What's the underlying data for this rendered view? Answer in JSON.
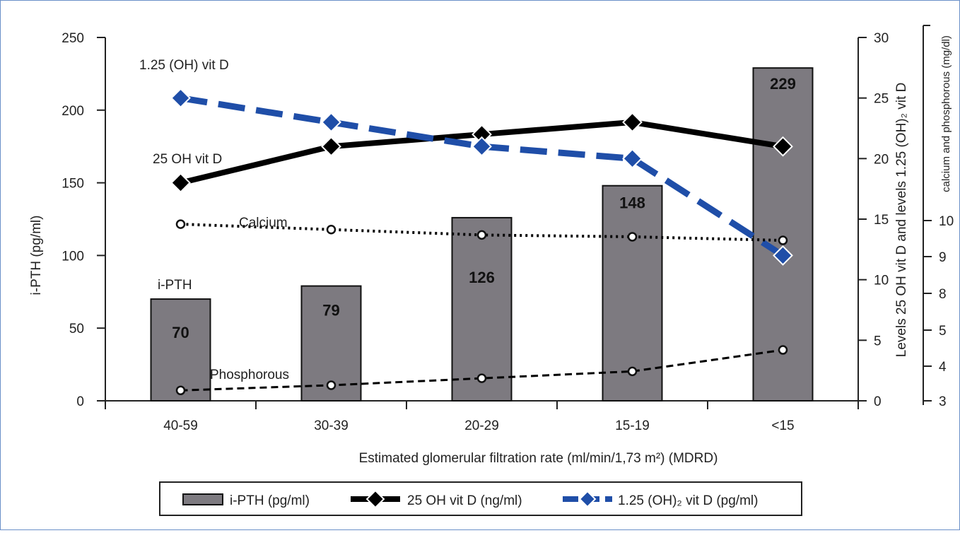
{
  "chart_data": {
    "type": "bar+line",
    "xlabel": "Estimated glomerular filtration rate (ml/min/1,73 m²) (MDRD)",
    "categories": [
      "40-59",
      "30-39",
      "20-29",
      "15-19",
      "<15"
    ],
    "y_left": {
      "label": "i-PTH (pg/ml)",
      "ylim": [
        0,
        250
      ],
      "ticks": [
        "0",
        "50",
        "100",
        "150",
        "200",
        "250"
      ]
    },
    "y_right1": {
      "label": "Levels 25 OH vit D and levels 1.25 (OH)₂ vit D",
      "ylim": [
        0,
        30
      ],
      "ticks": [
        "0",
        "5",
        "10",
        "15",
        "20",
        "25",
        "30"
      ]
    },
    "y_right2": {
      "label": "calcium and phosphorous (mg/dl)",
      "ticks": [
        "3",
        "4",
        "5",
        "8",
        "9",
        "10"
      ]
    },
    "bars": {
      "name": "i-PTH",
      "values": [
        70,
        79,
        126,
        148,
        229
      ],
      "value_labels": [
        "70",
        "79",
        "126",
        "148",
        "229"
      ],
      "color": "#7d7a80"
    },
    "lines": [
      {
        "name": "25 OH  vit D",
        "axis": "right1",
        "values": [
          18,
          21,
          22,
          23,
          21
        ],
        "color": "#000000",
        "style": "solid-diamond"
      },
      {
        "name": "1.25 (OH)₂  vit D",
        "axis": "right1",
        "values": [
          25,
          23,
          21,
          20,
          12
        ],
        "color": "#1f4ea8",
        "style": "dashed-diamond"
      },
      {
        "name": "Calcium",
        "axis": "right2",
        "values": [
          9.9,
          9.75,
          9.6,
          9.55,
          9.45
        ],
        "color": "#000000",
        "style": "dotted-circle"
      },
      {
        "name": "Phosphorous",
        "axis": "right2",
        "values": [
          3.3,
          3.45,
          3.65,
          3.85,
          4.45
        ],
        "color": "#000000",
        "style": "dashed-circle"
      }
    ],
    "legend": {
      "position": "bottom",
      "entries": [
        "i-PTH (pg/ml)",
        "25 OH vit D (ng/ml)",
        "1.25 (OH)₂ vit D (pg/ml)"
      ]
    }
  }
}
